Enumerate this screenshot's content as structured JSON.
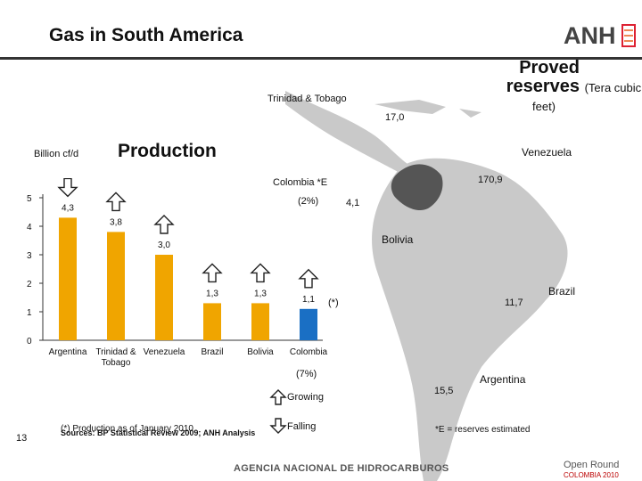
{
  "title": "Gas in South America",
  "logo": "ANH",
  "reserves": {
    "title": "Proved reserves",
    "unit_a": "(Tera cubic",
    "unit_b": "feet)",
    "labels": [
      {
        "name": "Trinidad & Tobago",
        "value": "17,0"
      },
      {
        "name": "Venezuela",
        "value": "170,9"
      },
      {
        "name": "Colombia *E",
        "value": "4,1"
      },
      {
        "name": "Bolivia",
        "value": ""
      },
      {
        "name": "Brazil",
        "value": "11,7"
      },
      {
        "name": "Argentina",
        "value": "15,5"
      }
    ]
  },
  "production": {
    "title": "Production",
    "unit": "Billion cf/d",
    "colombia_share_top": "(2%)",
    "colombia_share_bottom": "(7%)",
    "colombia_note_mark": "(*)"
  },
  "legend": {
    "growing": "Growing",
    "falling": "Falling"
  },
  "footnotes": {
    "production_note": "(*) Production as of January 2010",
    "reserves_note": "*E = reserves estimated",
    "sources": "Sources: BP Statistical Review 2009; ANH Analysis",
    "page_number": "13",
    "agency": "AGENCIA NACIONAL DE HIDROCARBUROS",
    "open_round": "Open Round",
    "open_round_sub": "COLOMBIA 2010"
  },
  "chart_data": {
    "type": "bar",
    "categories": [
      "Argentina",
      "Trinidad & Tobago",
      "Venezuela",
      "Brazil",
      "Bolivia",
      "Colombia"
    ],
    "values": [
      4.3,
      3.8,
      3.0,
      1.3,
      1.3,
      1.1
    ],
    "value_labels": [
      "4,3",
      "3,8",
      "3,0",
      "1,3",
      "1,3",
      "1,1"
    ],
    "trend": [
      "falling",
      "growing",
      "growing",
      "growing",
      "growing",
      "growing"
    ],
    "colors": [
      "#f0a500",
      "#f0a500",
      "#f0a500",
      "#f0a500",
      "#f0a500",
      "#1a6fc4"
    ],
    "yticks": [
      "0",
      "1",
      "2",
      "3",
      "4",
      "5"
    ],
    "ylim": [
      0,
      5
    ],
    "ylabel": "Billion cf/d"
  },
  "colors": {
    "bar": "#f0a500",
    "highlight_bar": "#1a6fc4",
    "map_land": "#c9c9c9",
    "map_highlight": "#555555"
  }
}
